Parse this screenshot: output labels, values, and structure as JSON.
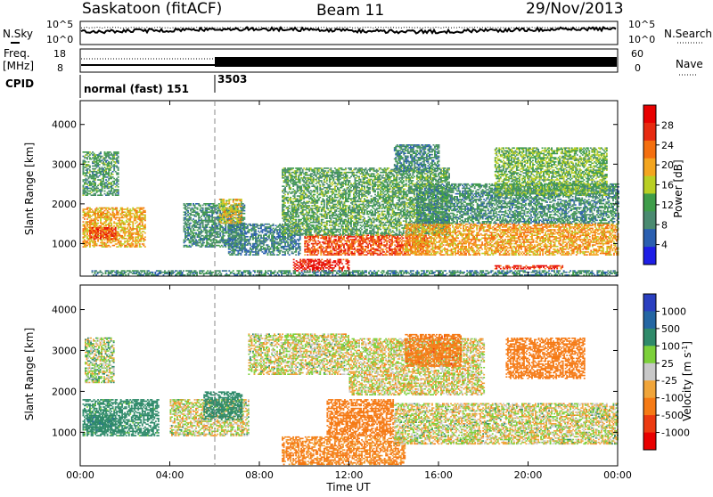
{
  "header": {
    "station": "Saskatoon (fitACF)",
    "beam": "Beam 11",
    "date": "29/Nov/2013"
  },
  "top_panels": {
    "nsky_label": "N.Sky",
    "nsky_ticks": [
      "10^5",
      "10^0"
    ],
    "nsearch_label": "N.Search",
    "nsearch_ticks": [
      "10^5",
      "10^0"
    ],
    "freq_label": "Freq.",
    "freq_unit": "[MHz]",
    "freq_ticks": [
      "18",
      "8"
    ],
    "nave_label": "Nave",
    "nave_ticks": [
      "60",
      "0"
    ],
    "cpid_label": "CPID",
    "cpid_segments": [
      {
        "start_hour": 0,
        "label": "normal (fast) 151"
      },
      {
        "start_hour": 6,
        "label": "3503"
      }
    ]
  },
  "chart_data": [
    {
      "type": "heatmap",
      "name": "power",
      "xlabel": "",
      "ylabel": "Slant Range [km]",
      "xlim": [
        0,
        24
      ],
      "ylim": [
        180,
        4600
      ],
      "yticks": [
        "1000",
        "2000",
        "3000",
        "4000"
      ],
      "colorbar_label": "Power [dB]",
      "colorbar_ticks": [
        "4",
        "8",
        "12",
        "16",
        "20",
        "24",
        "28"
      ],
      "colorbar_range": [
        0,
        32
      ],
      "colorscale": [
        "#1e1ee6",
        "#2b5fb0",
        "#4a8a70",
        "#3f9d4a",
        "#b9cf24",
        "#f3a51f",
        "#f46f0f",
        "#e72a10",
        "#e80000"
      ],
      "regions": [
        {
          "t0": 0.1,
          "t1": 2.9,
          "r0": 900,
          "r1": 1900,
          "level": 20
        },
        {
          "t0": 0.4,
          "t1": 1.6,
          "r0": 1100,
          "r1": 1400,
          "level": 27
        },
        {
          "t0": 0.1,
          "t1": 1.7,
          "r0": 2200,
          "r1": 3300,
          "level": 10
        },
        {
          "t0": 4.6,
          "t1": 7.3,
          "r0": 900,
          "r1": 2000,
          "level": 9
        },
        {
          "t0": 6.6,
          "t1": 9.8,
          "r0": 700,
          "r1": 1500,
          "level": 7
        },
        {
          "t0": 6.2,
          "t1": 7.2,
          "r0": 1500,
          "r1": 2100,
          "level": 18
        },
        {
          "t0": 9.5,
          "t1": 12.0,
          "r0": 300,
          "r1": 600,
          "level": 30
        },
        {
          "t0": 10.0,
          "t1": 15.5,
          "r0": 700,
          "r1": 1200,
          "level": 26
        },
        {
          "t0": 9.0,
          "t1": 16.5,
          "r0": 1200,
          "r1": 2900,
          "level": 11
        },
        {
          "t0": 14.0,
          "t1": 16.0,
          "r0": 2800,
          "r1": 3500,
          "level": 8
        },
        {
          "t0": 14.5,
          "t1": 24.0,
          "r0": 700,
          "r1": 1500,
          "level": 21
        },
        {
          "t0": 15.0,
          "t1": 24.0,
          "r0": 1500,
          "r1": 2500,
          "level": 9
        },
        {
          "t0": 18.5,
          "t1": 23.5,
          "r0": 2200,
          "r1": 3400,
          "level": 13
        },
        {
          "t0": 18.5,
          "t1": 21.5,
          "r0": 350,
          "r1": 450,
          "level": 29
        },
        {
          "t0": 0.5,
          "t1": 24.0,
          "r0": 190,
          "r1": 320,
          "level": 8
        }
      ]
    },
    {
      "type": "heatmap",
      "name": "velocity",
      "xlabel": "Time UT",
      "ylabel": "Slant Range [km]",
      "xlim": [
        0,
        24
      ],
      "ylim": [
        180,
        4600
      ],
      "xticks": [
        "00:00",
        "04:00",
        "08:00",
        "12:00",
        "16:00",
        "20:00",
        "00:00"
      ],
      "yticks": [
        "1000",
        "2000",
        "3000",
        "4000"
      ],
      "colorbar_label": "Velocity [m s^-1]",
      "colorbar_ticks": [
        "1000",
        "500",
        "100",
        "25",
        "-25",
        "-100",
        "-500",
        "-1000"
      ],
      "colorscale": [
        "#2a3fc0",
        "#2466a3",
        "#2f8a6a",
        "#7cd03a",
        "#c8c8c8",
        "#f0a53a",
        "#f57a15",
        "#ec3a10",
        "#e80000"
      ],
      "regions": [
        {
          "t0": 0.1,
          "t1": 3.5,
          "r0": 900,
          "r1": 1800,
          "v": 200
        },
        {
          "t0": 0.3,
          "t1": 1.5,
          "r0": 1000,
          "r1": 1400,
          "v": 400
        },
        {
          "t0": 0.2,
          "t1": 1.5,
          "r0": 2200,
          "r1": 3300,
          "v": 40
        },
        {
          "t0": 4.0,
          "t1": 7.5,
          "r0": 900,
          "r1": 1800,
          "v": 0
        },
        {
          "t0": 5.5,
          "t1": 7.2,
          "r0": 1300,
          "r1": 2000,
          "v": 300
        },
        {
          "t0": 9.0,
          "t1": 14.5,
          "r0": 200,
          "r1": 900,
          "v": -150
        },
        {
          "t0": 11.0,
          "t1": 14.0,
          "r0": 900,
          "r1": 1800,
          "v": -250
        },
        {
          "t0": 14.0,
          "t1": 24.0,
          "r0": 700,
          "r1": 1700,
          "v": 0
        },
        {
          "t0": 12.0,
          "t1": 18.0,
          "r0": 1900,
          "r1": 3300,
          "v": -10
        },
        {
          "t0": 19.0,
          "t1": 22.5,
          "r0": 2300,
          "r1": 3300,
          "v": -300
        },
        {
          "t0": 14.5,
          "t1": 17.0,
          "r0": 2600,
          "r1": 3400,
          "v": -400
        },
        {
          "t0": 7.5,
          "t1": 12.0,
          "r0": 2400,
          "r1": 3400,
          "v": 0
        }
      ]
    }
  ]
}
